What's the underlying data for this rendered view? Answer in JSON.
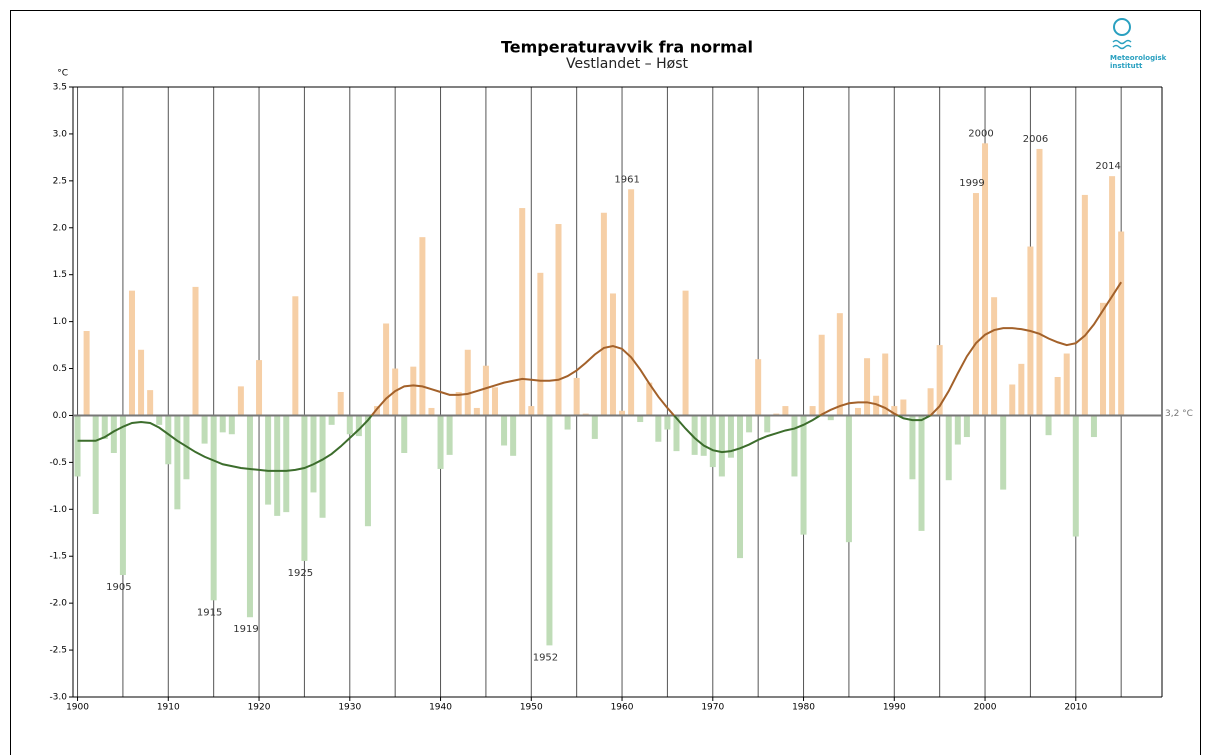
{
  "chart_data": {
    "type": "bar",
    "title": "Temperaturavvik fra normal",
    "subtitle": "Vestlandet – Høst",
    "y_label": "°C",
    "baseline_label": "3,2 °C",
    "logo": [
      "Meteorologisk",
      "institutt"
    ],
    "x": [
      1900,
      1901,
      1902,
      1903,
      1904,
      1905,
      1906,
      1907,
      1908,
      1909,
      1910,
      1911,
      1912,
      1913,
      1914,
      1915,
      1916,
      1917,
      1918,
      1919,
      1920,
      1921,
      1922,
      1923,
      1924,
      1925,
      1926,
      1927,
      1928,
      1929,
      1930,
      1931,
      1932,
      1933,
      1934,
      1935,
      1936,
      1937,
      1938,
      1939,
      1940,
      1941,
      1942,
      1943,
      1944,
      1945,
      1946,
      1947,
      1948,
      1949,
      1950,
      1951,
      1952,
      1953,
      1954,
      1955,
      1956,
      1957,
      1958,
      1959,
      1960,
      1961,
      1962,
      1963,
      1964,
      1965,
      1966,
      1967,
      1968,
      1969,
      1970,
      1971,
      1972,
      1973,
      1974,
      1975,
      1976,
      1977,
      1978,
      1979,
      1980,
      1981,
      1982,
      1983,
      1984,
      1985,
      1986,
      1987,
      1988,
      1989,
      1990,
      1991,
      1992,
      1993,
      1994,
      1995,
      1996,
      1997,
      1998,
      1999,
      2000,
      2001,
      2002,
      2003,
      2004,
      2005,
      2006,
      2007,
      2008,
      2009,
      2010,
      2011,
      2012,
      2013,
      2014,
      2015
    ],
    "values": [
      -0.65,
      0.9,
      -1.05,
      -0.25,
      -0.4,
      -1.7,
      1.33,
      0.7,
      0.27,
      -0.1,
      -0.52,
      -1.0,
      -0.68,
      1.37,
      -0.3,
      -1.97,
      -0.18,
      -0.2,
      0.31,
      -2.15,
      0.59,
      -0.95,
      -1.07,
      -1.03,
      1.27,
      -1.55,
      -0.82,
      -1.09,
      -0.1,
      0.25,
      -0.2,
      -0.22,
      -1.18,
      0.1,
      0.98,
      0.5,
      -0.4,
      0.52,
      1.9,
      0.08,
      -0.57,
      -0.42,
      0.25,
      0.7,
      0.08,
      0.53,
      0.3,
      -0.32,
      -0.43,
      2.21,
      0.1,
      1.52,
      -2.45,
      2.04,
      -0.15,
      0.4,
      0.02,
      -0.25,
      2.16,
      1.3,
      0.05,
      2.41,
      -0.07,
      0.35,
      -0.28,
      -0.15,
      -0.38,
      1.33,
      -0.42,
      -0.43,
      -0.55,
      -0.65,
      -0.45,
      -1.52,
      -0.18,
      0.6,
      -0.18,
      0.02,
      0.1,
      -0.65,
      -1.27,
      0.1,
      0.86,
      -0.05,
      1.09,
      -1.35,
      0.08,
      0.61,
      0.21,
      0.66,
      0.1,
      0.17,
      -0.68,
      -1.23,
      0.29,
      0.75,
      -0.69,
      -0.31,
      -0.23,
      2.37,
      2.9,
      1.26,
      -0.79,
      0.33,
      0.55,
      1.8,
      2.84,
      -0.21,
      0.41,
      0.66,
      -1.29,
      2.35,
      -0.23,
      1.2,
      2.55,
      1.96
    ],
    "trend": [
      -0.27,
      -0.27,
      -0.27,
      -0.23,
      -0.17,
      -0.12,
      -0.08,
      -0.07,
      -0.08,
      -0.13,
      -0.2,
      -0.27,
      -0.33,
      -0.39,
      -0.44,
      -0.48,
      -0.52,
      -0.54,
      -0.56,
      -0.57,
      -0.58,
      -0.59,
      -0.59,
      -0.59,
      -0.58,
      -0.56,
      -0.52,
      -0.47,
      -0.41,
      -0.33,
      -0.24,
      -0.15,
      -0.05,
      0.07,
      0.18,
      0.26,
      0.31,
      0.32,
      0.31,
      0.28,
      0.25,
      0.22,
      0.22,
      0.23,
      0.26,
      0.29,
      0.32,
      0.35,
      0.37,
      0.39,
      0.38,
      0.37,
      0.37,
      0.38,
      0.42,
      0.48,
      0.56,
      0.65,
      0.72,
      0.74,
      0.71,
      0.62,
      0.49,
      0.34,
      0.2,
      0.08,
      -0.03,
      -0.14,
      -0.24,
      -0.32,
      -0.37,
      -0.39,
      -0.38,
      -0.35,
      -0.31,
      -0.26,
      -0.22,
      -0.19,
      -0.16,
      -0.14,
      -0.1,
      -0.05,
      0.01,
      0.06,
      0.1,
      0.13,
      0.14,
      0.14,
      0.12,
      0.08,
      0.02,
      -0.03,
      -0.05,
      -0.05,
      0.0,
      0.1,
      0.26,
      0.45,
      0.63,
      0.77,
      0.86,
      0.91,
      0.93,
      0.93,
      0.92,
      0.9,
      0.87,
      0.82,
      0.78,
      0.75,
      0.77,
      0.85,
      0.97,
      1.12,
      1.27,
      1.42
    ],
    "annotations": [
      "1905",
      "1915",
      "1919",
      "1925",
      "1952",
      "1961",
      "1999",
      "2000",
      "2006",
      "2014"
    ],
    "colors": {
      "positive": "#f6cfa6",
      "negative": "#bfdcb7",
      "trend_positive": "#a3612a",
      "trend_negative": "#3c6d2c"
    },
    "xlim": [
      1899.5,
      2019.5
    ],
    "ylim": [
      -3.0,
      3.5
    ],
    "xticks": [
      1900,
      1910,
      1920,
      1930,
      1940,
      1950,
      1960,
      1970,
      1980,
      1990,
      2000,
      2010
    ],
    "xgrid": [
      1900,
      1905,
      1910,
      1915,
      1920,
      1925,
      1930,
      1935,
      1940,
      1945,
      1950,
      1955,
      1960,
      1965,
      1970,
      1975,
      1980,
      1985,
      1990,
      1995,
      2000,
      2005,
      2010,
      2015
    ],
    "yticks": [
      3.5,
      {
        "value": 3.0,
        "label": "3.0"
      },
      2.5,
      {
        "value": 2.0,
        "label": "2.0"
      },
      1.5,
      {
        "value": 1.0,
        "label": "1.0"
      },
      0.5,
      {
        "value": 0.0,
        "label": "0.0"
      },
      -0.5,
      {
        "value": -1.0,
        "label": "-1.0"
      },
      -1.5,
      {
        "value": -2.0,
        "label": "-2.0"
      },
      -2.5,
      {
        "value": -3.0,
        "label": "-3.0"
      }
    ]
  }
}
